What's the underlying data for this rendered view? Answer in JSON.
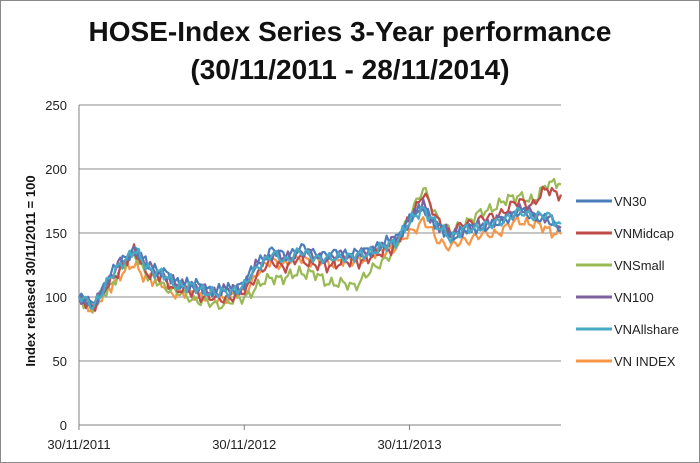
{
  "chart_data": {
    "type": "line",
    "title": "HOSE-Index Series 3-Year performance",
    "subtitle": "(30/11/2011 - 28/11/2014)",
    "xlabel": "",
    "ylabel": "Index rebased 30/11/2011 = 100",
    "ylim": [
      0,
      250
    ],
    "yticks": [
      0,
      50,
      100,
      150,
      200,
      250
    ],
    "xlim": [
      "30/11/2011",
      "28/11/2014"
    ],
    "xticks": [
      "30/11/2011",
      "30/11/2012",
      "30/11/2013"
    ],
    "grid": "horizontal",
    "legend": "right",
    "x": [
      "30/11/2011",
      "01/2012",
      "02/2012",
      "03/2012",
      "04/2012",
      "05/2012",
      "06/2012",
      "07/2012",
      "08/2012",
      "09/2012",
      "10/2012",
      "11/2012",
      "30/11/2012",
      "01/2013",
      "02/2013",
      "03/2013",
      "04/2013",
      "05/2013",
      "06/2013",
      "07/2013",
      "08/2013",
      "09/2013",
      "10/2013",
      "11/2013",
      "30/11/2013",
      "01/2014",
      "02/2014",
      "03/2014",
      "04/2014",
      "05/2014",
      "06/2014",
      "07/2014",
      "08/2014",
      "09/2014",
      "10/2014",
      "28/11/2014"
    ],
    "series": [
      {
        "name": "VN30",
        "color": "#4a7ebb",
        "values": [
          100,
          93,
          112,
          128,
          137,
          125,
          120,
          112,
          110,
          108,
          104,
          107,
          110,
          128,
          136,
          132,
          138,
          135,
          132,
          135,
          133,
          137,
          140,
          146,
          160,
          171,
          155,
          147,
          152,
          155,
          155,
          162,
          166,
          164,
          160,
          152
        ]
      },
      {
        "name": "VNMidcap",
        "color": "#be4b48",
        "values": [
          100,
          92,
          107,
          123,
          136,
          119,
          115,
          107,
          104,
          101,
          98,
          100,
          104,
          119,
          127,
          124,
          130,
          126,
          123,
          128,
          126,
          131,
          134,
          141,
          160,
          182,
          160,
          149,
          157,
          160,
          162,
          168,
          175,
          172,
          185,
          180
        ]
      },
      {
        "name": "VNSmall",
        "color": "#98b954",
        "values": [
          100,
          92,
          105,
          120,
          135,
          116,
          110,
          104,
          100,
          96,
          94,
          96,
          100,
          108,
          116,
          114,
          120,
          118,
          112,
          110,
          109,
          118,
          128,
          137,
          165,
          184,
          163,
          150,
          158,
          164,
          170,
          175,
          180,
          173,
          190,
          188
        ]
      },
      {
        "name": "VN100",
        "color": "#7d60a0",
        "values": [
          100,
          93,
          111,
          127,
          137,
          124,
          119,
          111,
          109,
          107,
          103,
          106,
          109,
          126,
          134,
          130,
          136,
          133,
          130,
          133,
          132,
          136,
          139,
          145,
          159,
          172,
          156,
          148,
          153,
          156,
          157,
          163,
          168,
          165,
          162,
          154
        ]
      },
      {
        "name": "VNAllshare",
        "color": "#46aac5",
        "values": [
          100,
          93,
          110,
          126,
          136,
          123,
          118,
          110,
          108,
          106,
          102,
          105,
          108,
          125,
          133,
          129,
          135,
          132,
          129,
          132,
          131,
          135,
          138,
          144,
          158,
          170,
          155,
          147,
          152,
          155,
          156,
          162,
          166,
          164,
          163,
          157
        ]
      },
      {
        "name": "VN INDEX",
        "color": "#f79646",
        "values": [
          100,
          90,
          104,
          118,
          125,
          114,
          110,
          103,
          102,
          100,
          98,
          100,
          103,
          120,
          128,
          126,
          131,
          129,
          126,
          129,
          128,
          132,
          135,
          139,
          150,
          160,
          145,
          139,
          144,
          148,
          149,
          154,
          160,
          157,
          153,
          149
        ]
      }
    ]
  }
}
